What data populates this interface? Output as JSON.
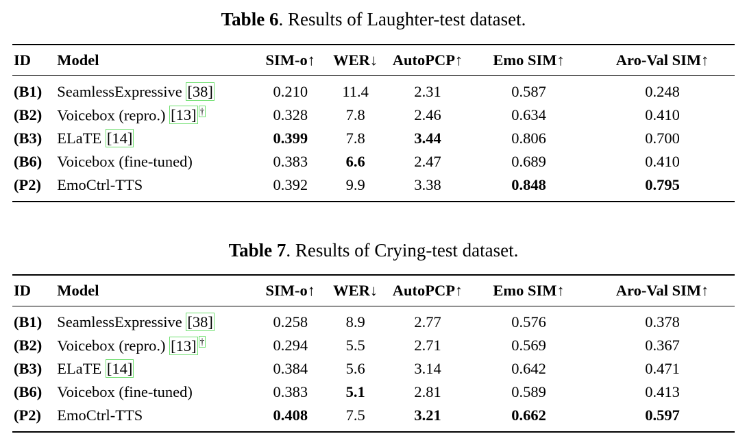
{
  "page": {
    "background_color": "#ffffff",
    "text_color": "#000000",
    "citation_box_color": "#6fdf6f"
  },
  "tables": [
    {
      "name": "laughter-test",
      "title_label": "Table 6",
      "title_text": ". Results of Laughter-test dataset.",
      "headers": [
        "ID",
        "Model",
        "SIM-o↑",
        "WER↓",
        "AutoPCP↑",
        "Emo SIM↑",
        "Aro-Val SIM↑"
      ],
      "rows": [
        {
          "id": "(B1)",
          "model": [
            {
              "t": "SeamlessExpressive "
            },
            {
              "t": "[38]",
              "box": true
            }
          ],
          "values": [
            {
              "v": "0.210"
            },
            {
              "v": "11.4"
            },
            {
              "v": "2.31"
            },
            {
              "v": "0.587"
            },
            {
              "v": "0.248"
            }
          ]
        },
        {
          "id": "(B2)",
          "model": [
            {
              "t": "Voicebox (repro.) "
            },
            {
              "t": "[13]",
              "box": true
            },
            {
              "t": "†",
              "box": true,
              "sup": true
            }
          ],
          "values": [
            {
              "v": "0.328"
            },
            {
              "v": "7.8"
            },
            {
              "v": "2.46"
            },
            {
              "v": "0.634"
            },
            {
              "v": "0.410"
            }
          ]
        },
        {
          "id": "(B3)",
          "model": [
            {
              "t": "ELaTE "
            },
            {
              "t": "[14]",
              "box": true
            }
          ],
          "values": [
            {
              "v": "0.399",
              "b": true
            },
            {
              "v": "7.8"
            },
            {
              "v": "3.44",
              "b": true
            },
            {
              "v": "0.806"
            },
            {
              "v": "0.700"
            }
          ]
        },
        {
          "id": "(B6)",
          "model": [
            {
              "t": "Voicebox (fine-tuned)"
            }
          ],
          "values": [
            {
              "v": "0.383"
            },
            {
              "v": "6.6",
              "b": true
            },
            {
              "v": "2.47"
            },
            {
              "v": "0.689"
            },
            {
              "v": "0.410"
            }
          ]
        },
        {
          "id": "(P2)",
          "model": [
            {
              "t": "EmoCtrl-TTS"
            }
          ],
          "values": [
            {
              "v": "0.392"
            },
            {
              "v": "9.9"
            },
            {
              "v": "3.38"
            },
            {
              "v": "0.848",
              "b": true
            },
            {
              "v": "0.795",
              "b": true
            }
          ]
        }
      ]
    },
    {
      "name": "crying-test",
      "title_label": "Table 7",
      "title_text": ". Results of Crying-test dataset.",
      "headers": [
        "ID",
        "Model",
        "SIM-o↑",
        "WER↓",
        "AutoPCP↑",
        "Emo SIM↑",
        "Aro-Val SIM↑"
      ],
      "rows": [
        {
          "id": "(B1)",
          "model": [
            {
              "t": "SeamlessExpressive "
            },
            {
              "t": "[38]",
              "box": true
            }
          ],
          "values": [
            {
              "v": "0.258"
            },
            {
              "v": "8.9"
            },
            {
              "v": "2.77"
            },
            {
              "v": "0.576"
            },
            {
              "v": "0.378"
            }
          ]
        },
        {
          "id": "(B2)",
          "model": [
            {
              "t": "Voicebox (repro.) "
            },
            {
              "t": "[13]",
              "box": true
            },
            {
              "t": "†",
              "box": true,
              "sup": true
            }
          ],
          "values": [
            {
              "v": "0.294"
            },
            {
              "v": "5.5"
            },
            {
              "v": "2.71"
            },
            {
              "v": "0.569"
            },
            {
              "v": "0.367"
            }
          ]
        },
        {
          "id": "(B3)",
          "model": [
            {
              "t": "ELaTE "
            },
            {
              "t": "[14]",
              "box": true
            }
          ],
          "values": [
            {
              "v": "0.384"
            },
            {
              "v": "5.6"
            },
            {
              "v": "3.14"
            },
            {
              "v": "0.642"
            },
            {
              "v": "0.471"
            }
          ]
        },
        {
          "id": "(B6)",
          "model": [
            {
              "t": "Voicebox (fine-tuned)"
            }
          ],
          "values": [
            {
              "v": "0.383"
            },
            {
              "v": "5.1",
              "b": true
            },
            {
              "v": "2.81"
            },
            {
              "v": "0.589"
            },
            {
              "v": "0.413"
            }
          ]
        },
        {
          "id": "(P2)",
          "model": [
            {
              "t": "EmoCtrl-TTS"
            }
          ],
          "values": [
            {
              "v": "0.408",
              "b": true
            },
            {
              "v": "7.5"
            },
            {
              "v": "3.21",
              "b": true
            },
            {
              "v": "0.662",
              "b": true
            },
            {
              "v": "0.597",
              "b": true
            }
          ]
        }
      ]
    }
  ]
}
